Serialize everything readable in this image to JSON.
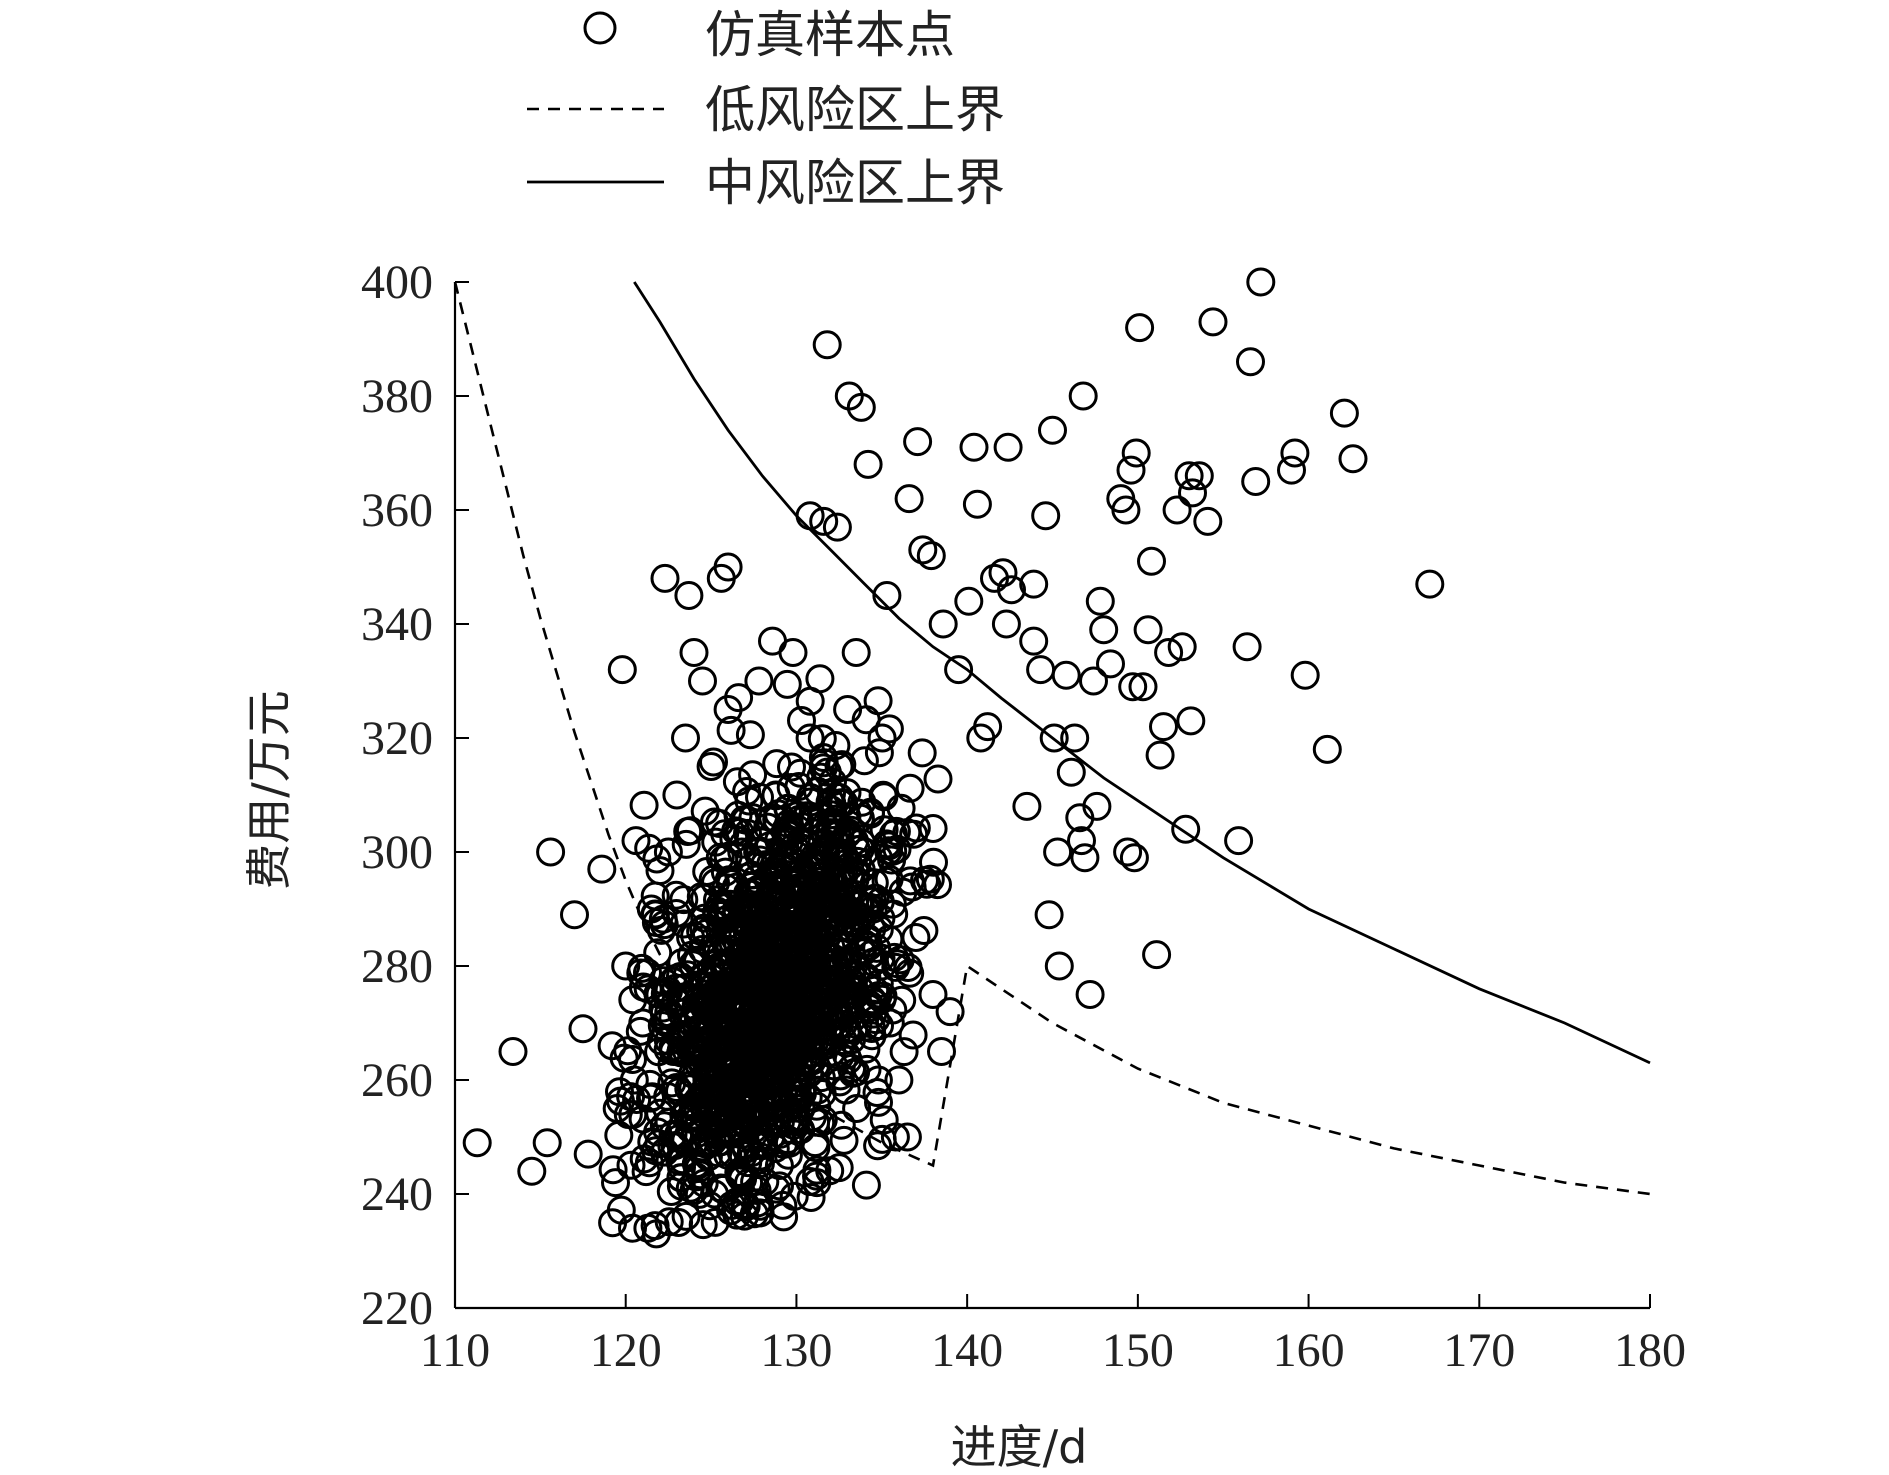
{
  "chart_data": {
    "type": "scatter",
    "xlabel": "进度/d",
    "ylabel": "费用/万元",
    "xlim": [
      110,
      180
    ],
    "ylim": [
      220,
      400
    ],
    "xticks": [
      110,
      120,
      130,
      140,
      150,
      160,
      170,
      180
    ],
    "yticks": [
      220,
      240,
      260,
      280,
      300,
      320,
      340,
      360,
      380,
      400
    ],
    "grid": false,
    "legend_position": "top",
    "legend": [
      {
        "label": "仿真样本点",
        "marker": "open-circle"
      },
      {
        "label": "低风险区上界",
        "style": "dashed"
      },
      {
        "label": "中风险区上界",
        "style": "solid"
      }
    ],
    "series": [
      {
        "name": "仿真样本点",
        "kind": "scatter",
        "points": [
          [
            111.3,
            249
          ],
          [
            113.4,
            265
          ],
          [
            114.5,
            244
          ],
          [
            115.4,
            249
          ],
          [
            115.6,
            300
          ],
          [
            117.0,
            289
          ],
          [
            117.5,
            269
          ],
          [
            117.8,
            247
          ],
          [
            118.6,
            297
          ],
          [
            119.2,
            266
          ],
          [
            119.4,
            242
          ],
          [
            119.8,
            332
          ],
          [
            120.4,
            234
          ],
          [
            120.6,
            302
          ],
          [
            121.3,
            234
          ],
          [
            121.8,
            233
          ],
          [
            122.3,
            348
          ],
          [
            123.1,
            235
          ],
          [
            123.7,
            345
          ],
          [
            125.6,
            348
          ],
          [
            126.0,
            350
          ],
          [
            128.6,
            337
          ],
          [
            130.8,
            359
          ],
          [
            131.6,
            358
          ],
          [
            132.4,
            357
          ],
          [
            131.8,
            389
          ],
          [
            133.1,
            380
          ],
          [
            133.8,
            378
          ],
          [
            134.2,
            368
          ],
          [
            135.3,
            345
          ],
          [
            136.6,
            362
          ],
          [
            137.1,
            372
          ],
          [
            137.4,
            353
          ],
          [
            137.9,
            352
          ],
          [
            138.6,
            340
          ],
          [
            139.5,
            332
          ],
          [
            140.1,
            344
          ],
          [
            140.4,
            371
          ],
          [
            140.6,
            361
          ],
          [
            140.8,
            320
          ],
          [
            141.2,
            322
          ],
          [
            141.6,
            348
          ],
          [
            142.1,
            349
          ],
          [
            142.3,
            340
          ],
          [
            142.4,
            371
          ],
          [
            142.6,
            346
          ],
          [
            143.5,
            308
          ],
          [
            143.9,
            347
          ],
          [
            143.9,
            337
          ],
          [
            144.3,
            332
          ],
          [
            144.6,
            359
          ],
          [
            144.8,
            289
          ],
          [
            145.0,
            374
          ],
          [
            145.1,
            320
          ],
          [
            145.3,
            300
          ],
          [
            145.4,
            280
          ],
          [
            145.8,
            331
          ],
          [
            146.1,
            314
          ],
          [
            146.3,
            320
          ],
          [
            146.6,
            306
          ],
          [
            146.7,
            302
          ],
          [
            146.8,
            380
          ],
          [
            146.9,
            299
          ],
          [
            147.2,
            275
          ],
          [
            147.4,
            330
          ],
          [
            147.6,
            308
          ],
          [
            147.8,
            344
          ],
          [
            148.0,
            339
          ],
          [
            148.4,
            333
          ],
          [
            149.0,
            362
          ],
          [
            149.3,
            360
          ],
          [
            149.4,
            300
          ],
          [
            149.6,
            367
          ],
          [
            149.7,
            329
          ],
          [
            149.8,
            299
          ],
          [
            149.9,
            370
          ],
          [
            150.1,
            392
          ],
          [
            150.3,
            329
          ],
          [
            150.6,
            339
          ],
          [
            150.8,
            351
          ],
          [
            151.1,
            282
          ],
          [
            151.3,
            317
          ],
          [
            151.5,
            322
          ],
          [
            151.8,
            335
          ],
          [
            152.3,
            360
          ],
          [
            152.6,
            336
          ],
          [
            152.8,
            304
          ],
          [
            153.0,
            366
          ],
          [
            153.1,
            323
          ],
          [
            153.2,
            363
          ],
          [
            153.6,
            366
          ],
          [
            154.1,
            358
          ],
          [
            154.4,
            393
          ],
          [
            155.9,
            302
          ],
          [
            156.4,
            336
          ],
          [
            156.6,
            386
          ],
          [
            156.9,
            365
          ],
          [
            157.2,
            400
          ],
          [
            159.0,
            367
          ],
          [
            159.2,
            370
          ],
          [
            159.8,
            331
          ],
          [
            161.1,
            318
          ],
          [
            162.1,
            377
          ],
          [
            162.6,
            369
          ],
          [
            167.1,
            347
          ],
          [
            121.5,
            290
          ],
          [
            122.0,
            275
          ],
          [
            122.5,
            300
          ],
          [
            123.0,
            310
          ],
          [
            123.5,
            320
          ],
          [
            124.0,
            335
          ],
          [
            124.5,
            330
          ],
          [
            125.0,
            315
          ],
          [
            125.5,
            305
          ],
          [
            126.0,
            325
          ],
          [
            126.5,
            290
          ],
          [
            127.0,
            280
          ],
          [
            127.5,
            270
          ],
          [
            128.0,
            260
          ],
          [
            128.5,
            250
          ],
          [
            129.0,
            245
          ],
          [
            129.5,
            255
          ],
          [
            130.0,
            265
          ],
          [
            130.5,
            275
          ],
          [
            131.0,
            285
          ],
          [
            131.5,
            295
          ],
          [
            132.0,
            305
          ],
          [
            132.5,
            315
          ],
          [
            133.0,
            325
          ],
          [
            133.5,
            335
          ],
          [
            134.0,
            300
          ],
          [
            134.5,
            290
          ],
          [
            135.0,
            280
          ],
          [
            135.5,
            270
          ],
          [
            136.0,
            260
          ],
          [
            136.5,
            250
          ],
          [
            137.0,
            285
          ],
          [
            137.5,
            295
          ],
          [
            138.0,
            275
          ],
          [
            138.5,
            265
          ],
          [
            139.0,
            272
          ],
          [
            124.2,
            245
          ],
          [
            125.2,
            240
          ],
          [
            126.2,
            238
          ],
          [
            127.2,
            242
          ],
          [
            120.5,
            260
          ],
          [
            121.0,
            270
          ],
          [
            120.0,
            280
          ],
          [
            119.5,
            255
          ],
          [
            122.8,
            265
          ],
          [
            123.8,
            285
          ],
          [
            126.8,
            300
          ],
          [
            128.8,
            310
          ],
          [
            130.8,
            320
          ],
          [
            132.8,
            290
          ],
          [
            134.8,
            260
          ],
          [
            135.8,
            250
          ],
          [
            131.2,
            242
          ],
          [
            129.2,
            238
          ],
          [
            127.8,
            330
          ],
          [
            129.8,
            335
          ]
        ],
        "note_cluster": {
          "center": [
            128.5,
            275
          ],
          "dense": true
        }
      },
      {
        "name": "低风险区上界",
        "kind": "line",
        "style": "dashed",
        "x": [
          110,
          111,
          112,
          113,
          114,
          115,
          116,
          117,
          118,
          119,
          120,
          121,
          122,
          124,
          126,
          128,
          130,
          132,
          135,
          138,
          140,
          145,
          150,
          155,
          160,
          165,
          170,
          175,
          180
        ],
        "y": [
          400,
          388,
          376,
          364,
          352,
          341,
          331,
          321,
          312,
          303,
          295,
          288,
          282,
          273,
          267,
          262,
          258,
          254,
          249,
          245,
          280,
          270,
          262,
          256,
          252,
          248,
          245,
          242,
          240
        ]
      },
      {
        "name": "中风险区上界",
        "kind": "line",
        "style": "solid",
        "x": [
          120.5,
          122,
          124,
          126,
          128,
          130,
          132,
          134,
          136,
          138,
          140,
          142,
          145,
          148,
          150,
          155,
          160,
          165,
          170,
          175,
          180
        ],
        "y": [
          400,
          393,
          383,
          374,
          366,
          359,
          353,
          347,
          341,
          336,
          332,
          327,
          320,
          313,
          309,
          299,
          290,
          283,
          276,
          270,
          263
        ]
      }
    ]
  }
}
